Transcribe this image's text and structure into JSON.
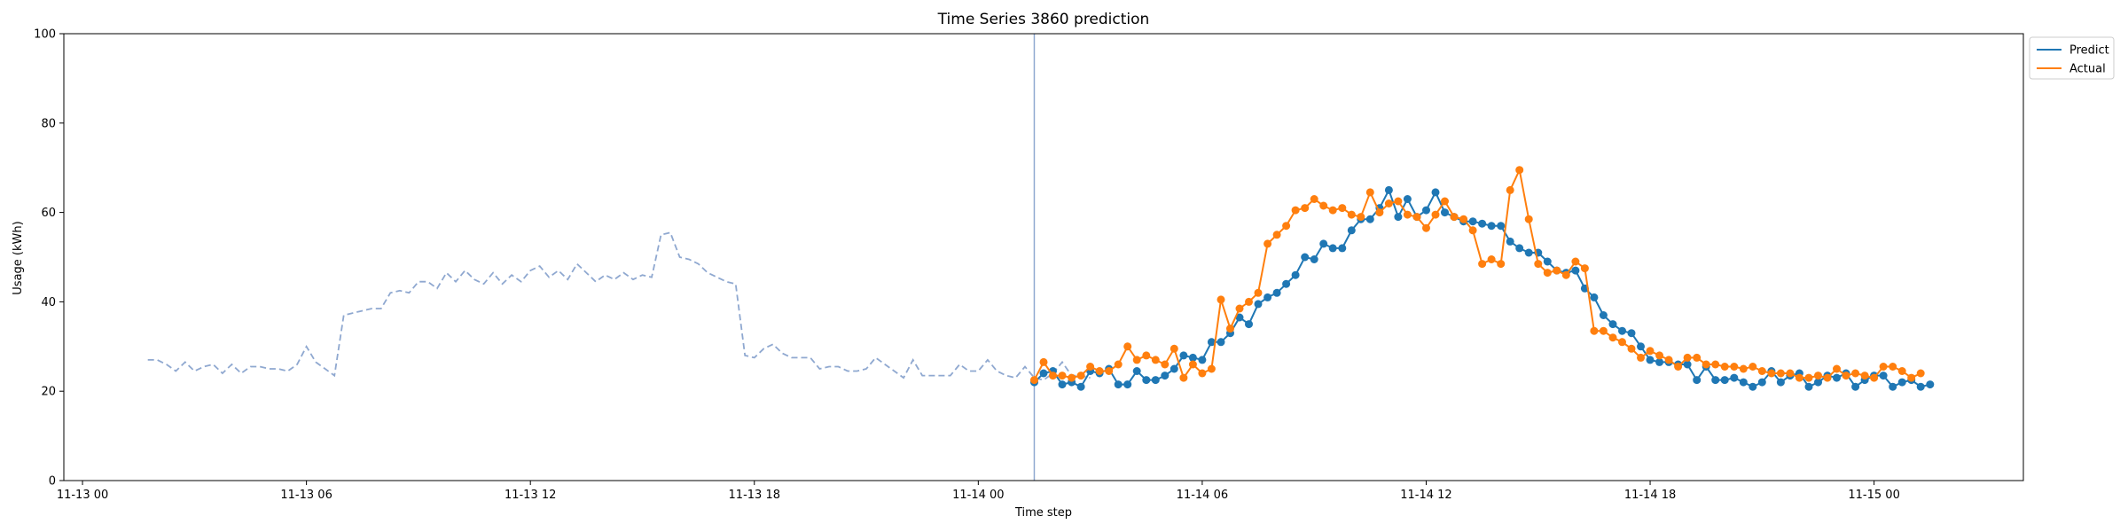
{
  "chart_data": {
    "type": "line",
    "title": "Time Series 3860 prediction",
    "xlabel": "Time step",
    "ylabel": "Usage (kWh)",
    "ylim": [
      0,
      100
    ],
    "xlim_hours": [
      -0.5,
      52.0
    ],
    "x_ticks": [
      {
        "hour": 0,
        "label": "11-13 00"
      },
      {
        "hour": 6,
        "label": "11-13 06"
      },
      {
        "hour": 12,
        "label": "11-13 12"
      },
      {
        "hour": 18,
        "label": "11-13 18"
      },
      {
        "hour": 24,
        "label": "11-14 00"
      },
      {
        "hour": 30,
        "label": "11-14 06"
      },
      {
        "hour": 36,
        "label": "11-14 12"
      },
      {
        "hour": 42,
        "label": "11-14 18"
      },
      {
        "hour": 48,
        "label": "11-15 00"
      }
    ],
    "y_ticks": [
      0,
      20,
      40,
      60,
      80,
      100
    ],
    "grid": false,
    "legend_position": "top-right-outside",
    "forecast_start_hour": 25.5,
    "step_hours": 0.25,
    "history": {
      "start_hour": 1.75,
      "color": "#8fa8d0",
      "values": [
        27,
        27,
        26,
        24.5,
        26.5,
        24.5,
        25.5,
        26,
        24,
        26,
        24,
        25.5,
        25.5,
        25,
        25,
        24.5,
        26,
        30,
        26.5,
        25,
        23.5,
        37,
        37.5,
        38,
        38.5,
        38.5,
        42,
        42.5,
        42,
        44.5,
        44.5,
        43,
        46.5,
        44.5,
        47,
        45,
        44,
        46.5,
        44,
        46,
        44.5,
        47,
        48,
        45.5,
        47,
        45,
        48.5,
        46.5,
        44.5,
        46,
        45,
        46.5,
        45,
        46,
        45.5,
        55,
        55.5,
        50,
        49.5,
        48.5,
        46.5,
        45.5,
        44.5,
        44,
        28,
        27.5,
        29.5,
        30.5,
        28.5,
        27.5,
        27.5,
        27.5,
        25,
        25.5,
        25.5,
        24.5,
        24.5,
        25,
        27.5,
        26,
        24.5,
        23,
        27,
        23.5,
        23.5,
        23.5,
        23.5,
        26,
        24.5,
        24.5,
        27,
        24.5,
        23.5,
        23,
        25.5,
        23,
        22.5,
        24,
        26.5,
        23.5,
        23.5,
        23
      ]
    },
    "series": [
      {
        "name": "Predict",
        "color": "#1f77b4",
        "values": [
          22,
          24,
          24.5,
          21.5,
          22,
          21,
          24.5,
          24,
          25,
          21.5,
          21.5,
          24.5,
          22.5,
          22.5,
          23.5,
          25,
          28,
          27.5,
          27,
          31,
          31,
          33,
          36.5,
          35,
          39.5,
          41,
          42,
          44,
          46,
          50,
          49.5,
          53,
          52,
          52,
          56,
          58.5,
          58.5,
          61,
          65,
          59,
          63,
          59,
          60.5,
          64.5,
          60,
          59,
          58,
          58,
          57.5,
          57,
          57,
          53.5,
          52,
          51,
          51,
          49,
          47,
          46.5,
          47,
          43,
          41,
          37,
          35,
          33.5,
          33,
          30,
          27,
          26.5,
          26.5,
          26,
          26,
          22.5,
          25.5,
          22.5,
          22.5,
          23,
          22,
          21,
          22,
          24.5,
          22,
          23.5,
          24,
          21,
          22,
          23.5,
          23,
          24,
          21,
          22.5,
          23.5,
          23.5,
          21,
          22,
          22.5,
          21,
          21.5
        ]
      },
      {
        "name": "Actual",
        "color": "#ff7f0e",
        "values": [
          22.5,
          26.5,
          23.5,
          23.5,
          23,
          23.5,
          25.5,
          24.5,
          24.5,
          26,
          30,
          27,
          28,
          27,
          26,
          29.5,
          23,
          26,
          24,
          25,
          40.5,
          34,
          38.5,
          40,
          42,
          53,
          55,
          57,
          60.5,
          61,
          63,
          61.5,
          60.5,
          61,
          59.5,
          59,
          64.5,
          60,
          62,
          62.5,
          59.5,
          59,
          56.5,
          59.5,
          62.5,
          59,
          58.5,
          56,
          48.5,
          49.5,
          48.5,
          65,
          69.5,
          58.5,
          48.5,
          46.5,
          47,
          46,
          49,
          47.5,
          33.5,
          33.5,
          32,
          31,
          29.5,
          27.5,
          29,
          28,
          27,
          25.5,
          27.5,
          27.5,
          26,
          26,
          25.5,
          25.5,
          25,
          25.5,
          24.5,
          24,
          24,
          24,
          23,
          23,
          23.5,
          23,
          25,
          23.5,
          24,
          23.5,
          23,
          25.5,
          25.5,
          24.5,
          23,
          24
        ]
      }
    ]
  }
}
